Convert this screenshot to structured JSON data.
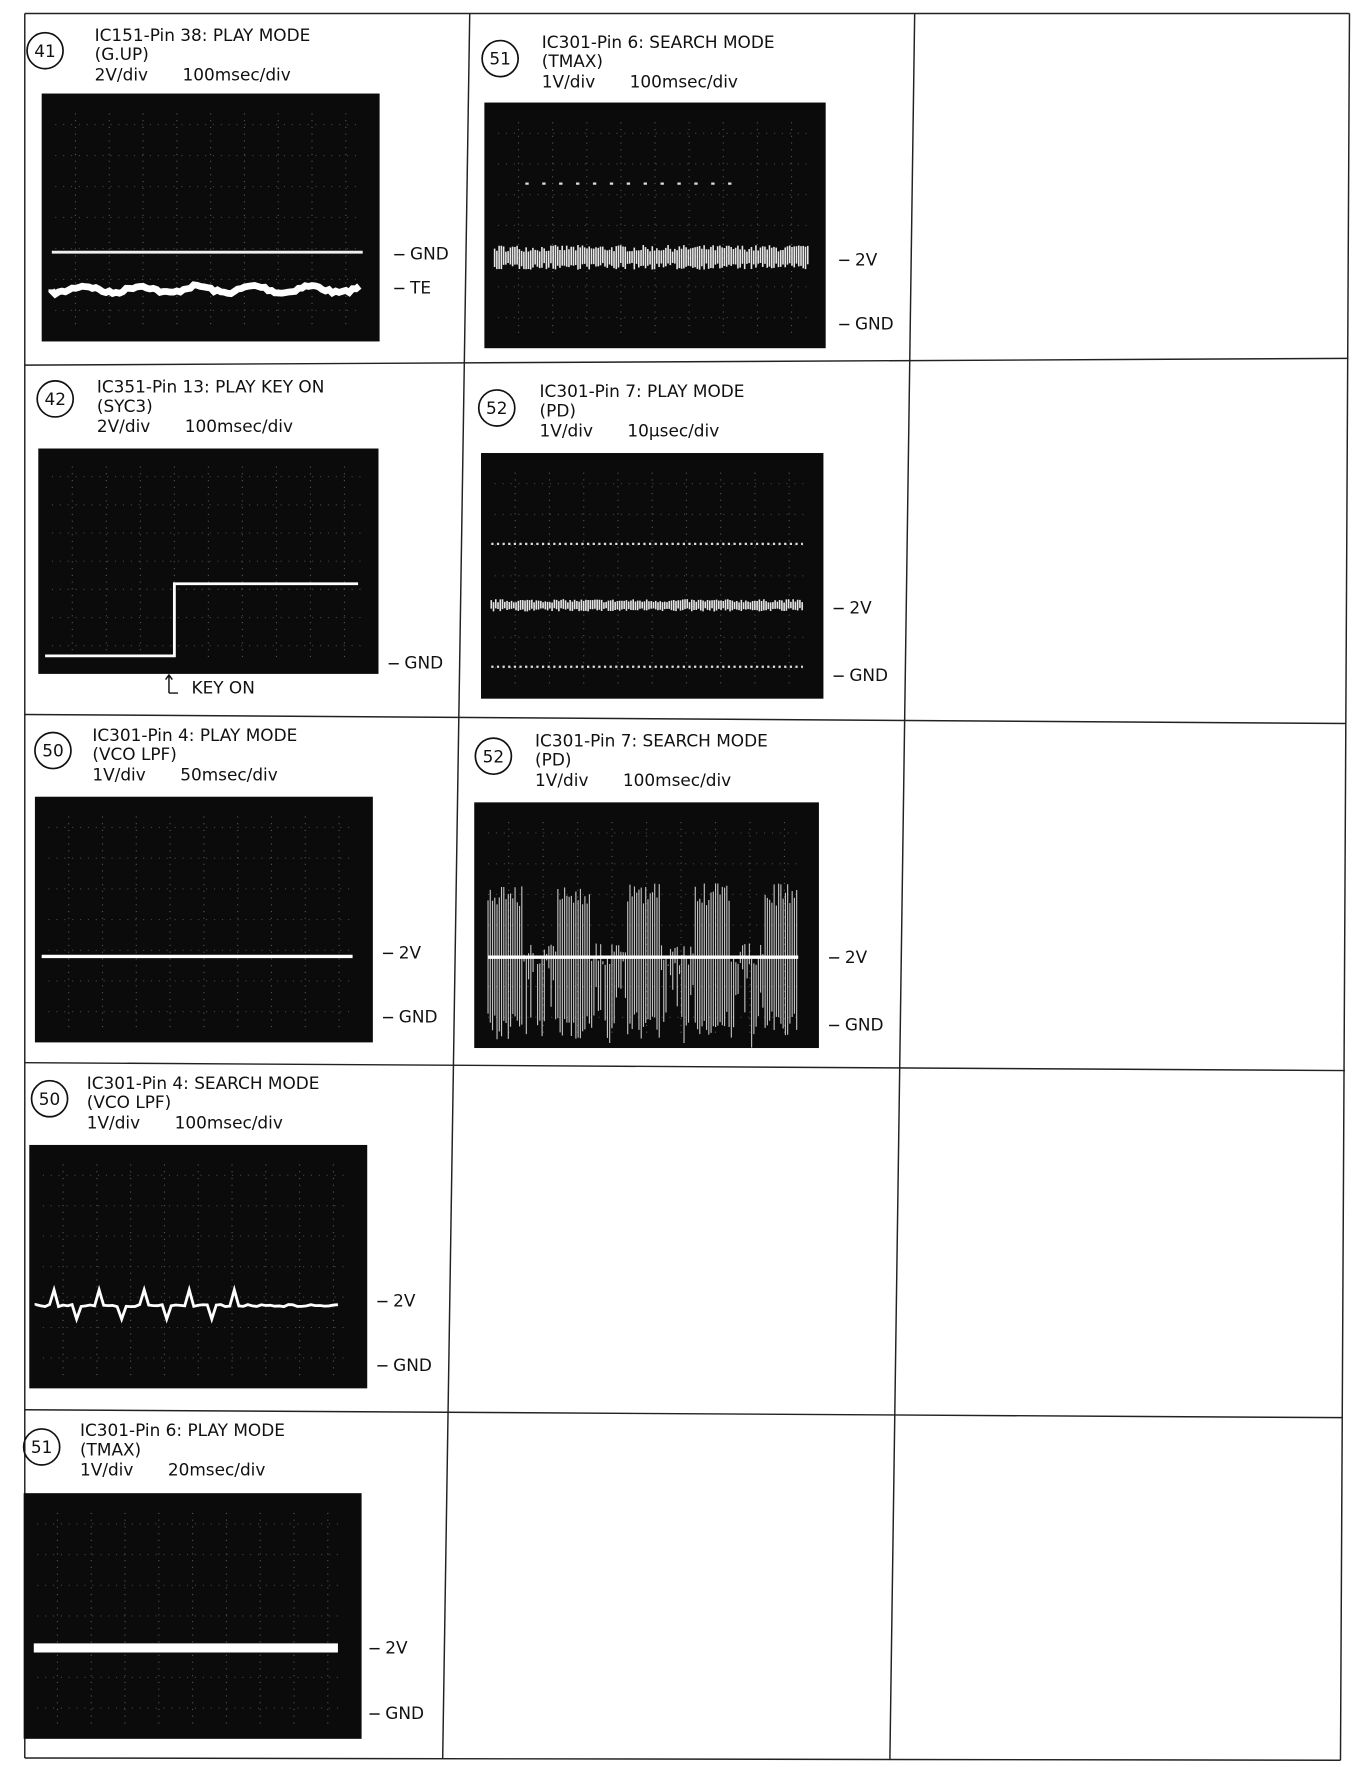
{
  "panels": [
    {
      "number": "41",
      "title": "IC151-Pin 38: PLAY MODE",
      "signal": "(G.UP)",
      "volts_per_div": "2V/div",
      "time_per_div": "100msec/div",
      "labels": [
        "GND",
        "TE"
      ]
    },
    {
      "number": "51",
      "title": "IC301-Pin 6: SEARCH MODE",
      "signal": "(TMAX)",
      "volts_per_div": "1V/div",
      "time_per_div": "100msec/div",
      "labels": [
        "2V",
        "GND"
      ]
    },
    {
      "number": "42",
      "title": "IC351-Pin 13: PLAY KEY ON",
      "signal": "(SYC3)",
      "volts_per_div": "2V/div",
      "time_per_div": "100msec/div",
      "labels": [
        "GND"
      ],
      "marker": "KEY ON"
    },
    {
      "number": "52",
      "title": "IC301-Pin 7: PLAY MODE",
      "signal": "(PD)",
      "volts_per_div": "1V/div",
      "time_per_div": "10μsec/div",
      "labels": [
        "2V",
        "GND"
      ]
    },
    {
      "number": "50",
      "title": "IC301-Pin 4: PLAY MODE",
      "signal": "(VCO LPF)",
      "volts_per_div": "1V/div",
      "time_per_div": "50msec/div",
      "labels": [
        "2V",
        "GND"
      ]
    },
    {
      "number": "52",
      "title": "IC301-Pin 7: SEARCH MODE",
      "signal": "(PD)",
      "volts_per_div": "1V/div",
      "time_per_div": "100msec/div",
      "labels": [
        "2V",
        "GND"
      ]
    },
    {
      "number": "50",
      "title": "IC301-Pin 4: SEARCH MODE",
      "signal": "(VCO LPF)",
      "volts_per_div": "1V/div",
      "time_per_div": "100msec/div",
      "labels": [
        "2V",
        "GND"
      ]
    },
    {
      "number": "51",
      "title": "IC301-Pin 6: PLAY MODE",
      "signal": "(TMAX)",
      "volts_per_div": "1V/div",
      "time_per_div": "20msec/div",
      "labels": [
        "2V",
        "GND"
      ]
    }
  ]
}
